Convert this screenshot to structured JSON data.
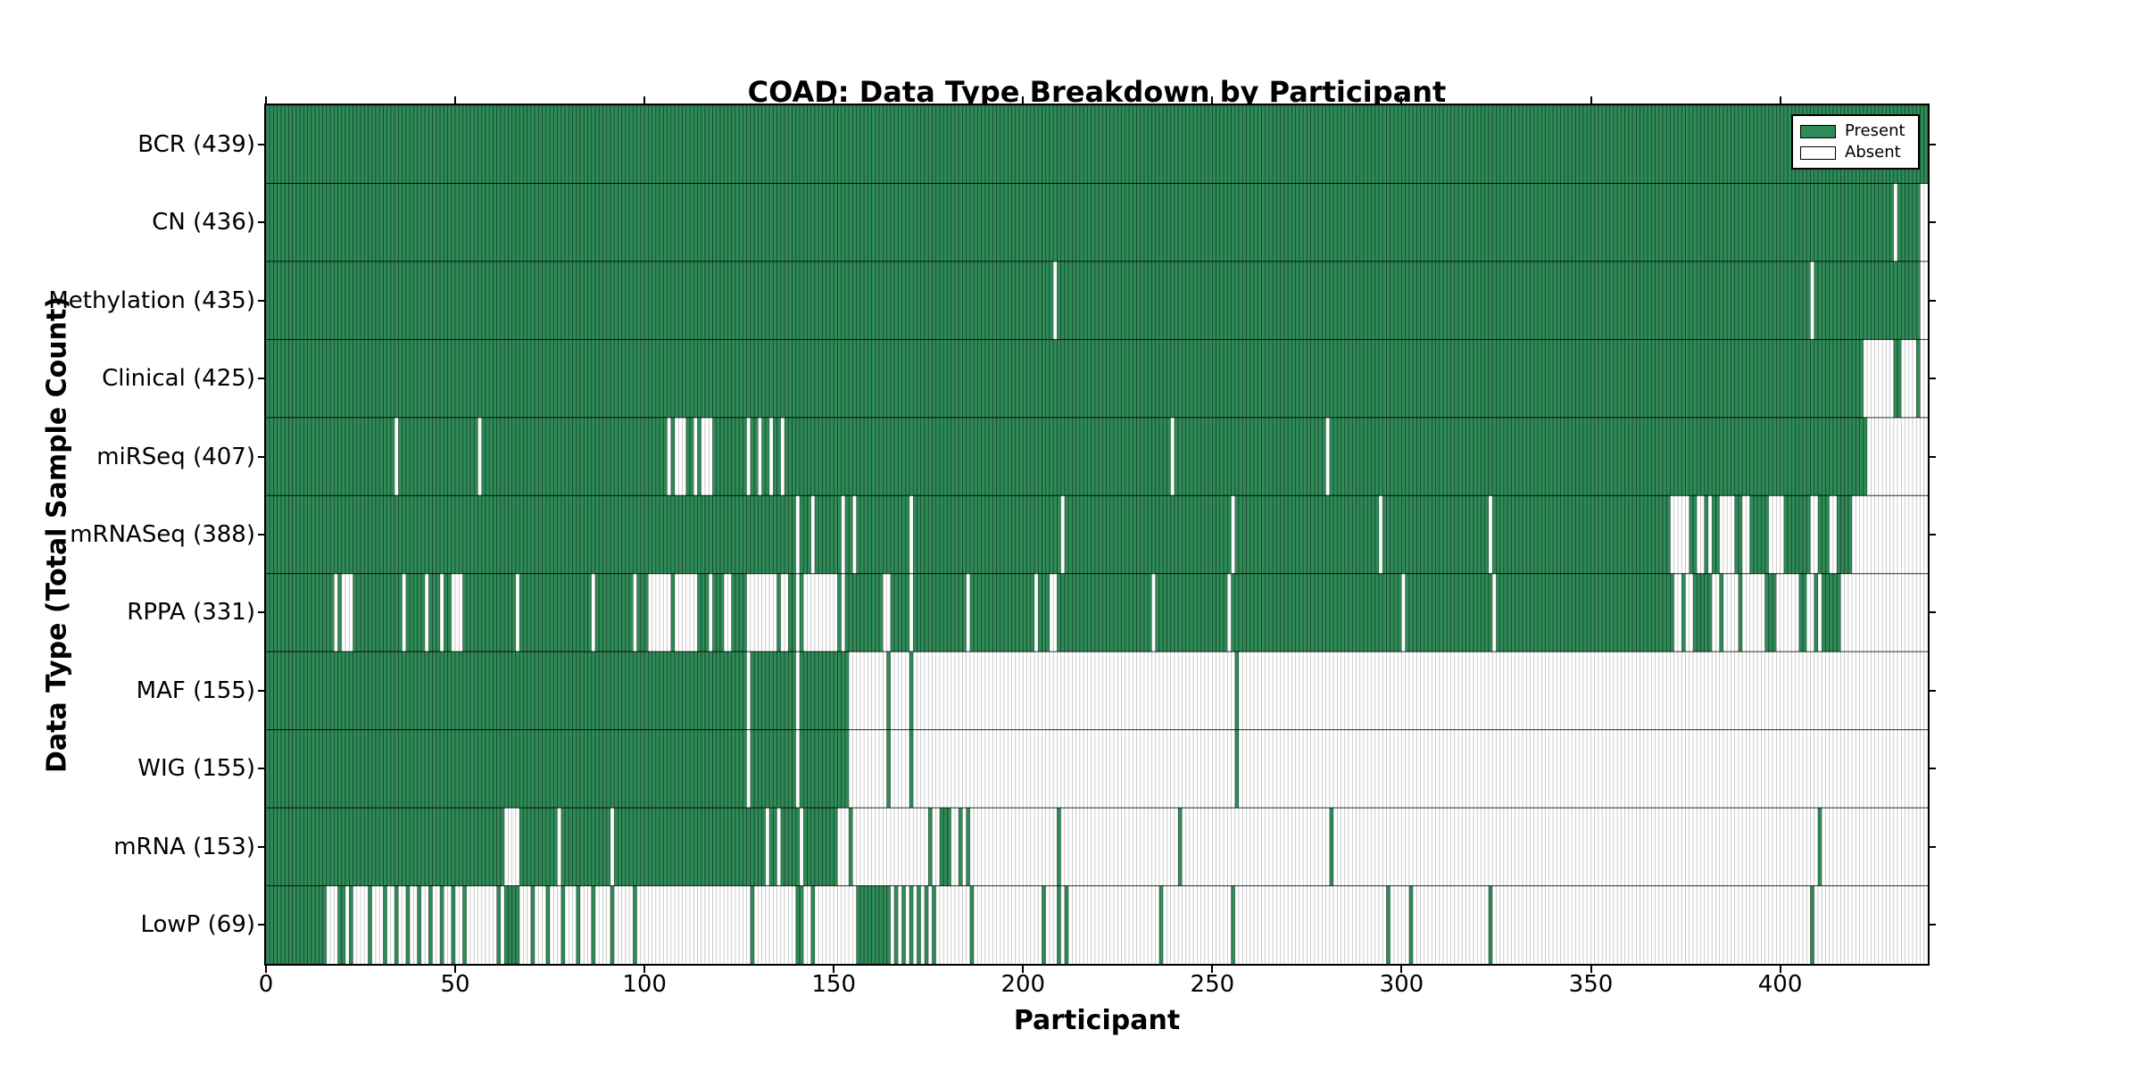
{
  "page": {
    "background": "#ffffff"
  },
  "chart_data": {
    "type": "heatmap",
    "title": "COAD: Data Type Breakdown by Participant",
    "xlabel": "Participant",
    "ylabel": "Data Type (Total Sample Count)",
    "x_ticks": [
      0,
      50,
      100,
      150,
      200,
      250,
      300,
      350,
      400
    ],
    "xlim": [
      0,
      439
    ],
    "n_participants": 439,
    "grid": "off",
    "legend_position": "upper right",
    "colors": {
      "present": "#2E8B57",
      "absent": "#ffffff",
      "axis": "#000000"
    },
    "legend": [
      {
        "key": "present",
        "label": "Present"
      },
      {
        "key": "absent",
        "label": "Absent"
      }
    ],
    "rows": [
      {
        "label": "BCR",
        "count": 439,
        "display": "BCR (439)",
        "mode": "absent",
        "ranges": []
      },
      {
        "label": "CN",
        "count": 436,
        "display": "CN (436)",
        "mode": "absent",
        "ranges": [
          [
            430,
            430
          ],
          [
            437,
            438
          ]
        ]
      },
      {
        "label": "Methylation",
        "count": 435,
        "display": "Methylation (435)",
        "mode": "absent",
        "ranges": [
          [
            208,
            208
          ],
          [
            408,
            408
          ],
          [
            437,
            438
          ]
        ]
      },
      {
        "label": "Clinical",
        "count": 425,
        "display": "Clinical (425)",
        "mode": "absent",
        "ranges": [
          [
            422,
            429
          ],
          [
            432,
            435
          ],
          [
            437,
            438
          ]
        ]
      },
      {
        "label": "miRSeq",
        "count": 407,
        "display": "miRSeq (407)",
        "mode": "absent",
        "ranges": [
          [
            34,
            34
          ],
          [
            56,
            56
          ],
          [
            106,
            106
          ],
          [
            108,
            110
          ],
          [
            113,
            113
          ],
          [
            115,
            117
          ],
          [
            127,
            127
          ],
          [
            130,
            130
          ],
          [
            133,
            133
          ],
          [
            136,
            136
          ],
          [
            239,
            239
          ],
          [
            280,
            280
          ],
          [
            423,
            438
          ]
        ]
      },
      {
        "label": "mRNASeq",
        "count": 388,
        "display": "mRNASeq (388)",
        "mode": "absent",
        "ranges": [
          [
            140,
            140
          ],
          [
            144,
            144
          ],
          [
            152,
            152
          ],
          [
            155,
            155
          ],
          [
            170,
            170
          ],
          [
            210,
            210
          ],
          [
            255,
            255
          ],
          [
            294,
            294
          ],
          [
            323,
            323
          ],
          [
            371,
            375
          ],
          [
            378,
            379
          ],
          [
            381,
            381
          ],
          [
            384,
            387
          ],
          [
            390,
            391
          ],
          [
            397,
            400
          ],
          [
            408,
            409
          ],
          [
            413,
            414
          ],
          [
            419,
            438
          ]
        ]
      },
      {
        "label": "RPPA",
        "count": 331,
        "display": "RPPA (331)",
        "mode": "absent",
        "ranges": [
          [
            18,
            18
          ],
          [
            20,
            22
          ],
          [
            36,
            36
          ],
          [
            42,
            42
          ],
          [
            46,
            46
          ],
          [
            49,
            51
          ],
          [
            66,
            66
          ],
          [
            86,
            86
          ],
          [
            97,
            97
          ],
          [
            101,
            106
          ],
          [
            108,
            113
          ],
          [
            117,
            117
          ],
          [
            121,
            122
          ],
          [
            127,
            134
          ],
          [
            136,
            137
          ],
          [
            140,
            140
          ],
          [
            142,
            150
          ],
          [
            152,
            152
          ],
          [
            163,
            164
          ],
          [
            170,
            170
          ],
          [
            185,
            185
          ],
          [
            203,
            203
          ],
          [
            207,
            208
          ],
          [
            234,
            234
          ],
          [
            254,
            254
          ],
          [
            300,
            300
          ],
          [
            324,
            324
          ],
          [
            372,
            373
          ],
          [
            375,
            376
          ],
          [
            382,
            383
          ],
          [
            385,
            388
          ],
          [
            390,
            395
          ],
          [
            399,
            404
          ],
          [
            407,
            408
          ],
          [
            410,
            410
          ],
          [
            416,
            438
          ]
        ]
      },
      {
        "label": "MAF",
        "count": 155,
        "display": "MAF (155)",
        "mode": "present",
        "ranges": [
          [
            0,
            126
          ],
          [
            128,
            139
          ],
          [
            141,
            153
          ],
          [
            164,
            164
          ],
          [
            170,
            170
          ],
          [
            256,
            256
          ]
        ]
      },
      {
        "label": "WIG",
        "count": 155,
        "display": "WIG (155)",
        "mode": "present",
        "ranges": [
          [
            0,
            126
          ],
          [
            128,
            139
          ],
          [
            141,
            153
          ],
          [
            164,
            164
          ],
          [
            170,
            170
          ],
          [
            256,
            256
          ]
        ]
      },
      {
        "label": "mRNA",
        "count": 153,
        "display": "mRNA (153)",
        "mode": "present",
        "ranges": [
          [
            0,
            62
          ],
          [
            67,
            76
          ],
          [
            78,
            90
          ],
          [
            92,
            131
          ],
          [
            133,
            134
          ],
          [
            136,
            140
          ],
          [
            142,
            150
          ],
          [
            154,
            154
          ],
          [
            175,
            175
          ],
          [
            178,
            180
          ],
          [
            183,
            183
          ],
          [
            185,
            185
          ],
          [
            209,
            209
          ],
          [
            241,
            241
          ],
          [
            281,
            281
          ],
          [
            410,
            410
          ]
        ]
      },
      {
        "label": "LowP",
        "count": 69,
        "display": "LowP (69)",
        "mode": "present",
        "ranges": [
          [
            0,
            15
          ],
          [
            19,
            20
          ],
          [
            22,
            22
          ],
          [
            27,
            27
          ],
          [
            31,
            31
          ],
          [
            34,
            34
          ],
          [
            37,
            37
          ],
          [
            40,
            40
          ],
          [
            43,
            43
          ],
          [
            46,
            46
          ],
          [
            49,
            49
          ],
          [
            52,
            52
          ],
          [
            61,
            61
          ],
          [
            63,
            66
          ],
          [
            70,
            70
          ],
          [
            74,
            74
          ],
          [
            78,
            78
          ],
          [
            82,
            82
          ],
          [
            86,
            86
          ],
          [
            91,
            91
          ],
          [
            97,
            97
          ],
          [
            128,
            128
          ],
          [
            140,
            141
          ],
          [
            144,
            144
          ],
          [
            156,
            164
          ],
          [
            166,
            166
          ],
          [
            168,
            168
          ],
          [
            170,
            170
          ],
          [
            172,
            172
          ],
          [
            174,
            174
          ],
          [
            176,
            176
          ],
          [
            186,
            186
          ],
          [
            205,
            205
          ],
          [
            209,
            209
          ],
          [
            211,
            211
          ],
          [
            236,
            236
          ],
          [
            255,
            255
          ],
          [
            296,
            296
          ],
          [
            302,
            302
          ],
          [
            323,
            323
          ],
          [
            408,
            408
          ]
        ]
      }
    ]
  }
}
